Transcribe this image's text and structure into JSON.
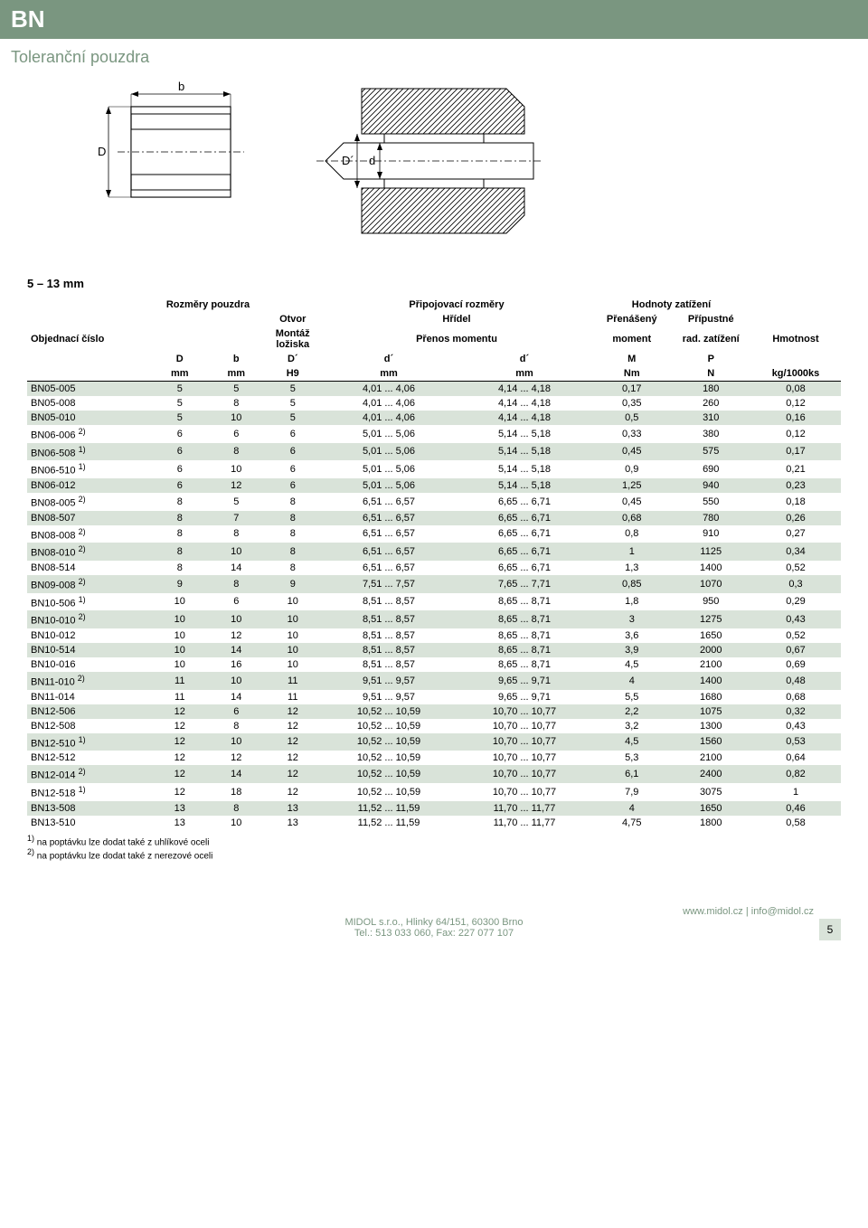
{
  "header": {
    "code": "BN",
    "subtitle": "Toleranční pouzdra"
  },
  "diagram": {
    "labels": {
      "D": "D",
      "Dp": "D´",
      "d": "d",
      "b": "b"
    }
  },
  "size_range": "5 – 13 mm",
  "table": {
    "headers": {
      "dims": "Rozměry pouzdra",
      "otvor": "Otvor",
      "conn": "Připojovací rozměry",
      "hridel": "Hřídel",
      "load": "Hodnoty zatížení",
      "order": "Objednací číslo",
      "montaz": "Montáž ložiska",
      "prenos": "Přenos momentu",
      "prenas": "Přenášený",
      "moment": "moment",
      "prip": "Přípustné",
      "rad": "rad. zatížení",
      "hm": "Hmotnost",
      "D": "D",
      "b": "b",
      "Dp": "D´",
      "dp": "d´",
      "dpp": "d´",
      "M": "M",
      "P": "P",
      "mm": "mm",
      "H9": "H9",
      "Nm": "Nm",
      "N": "N",
      "kg": "kg/1000ks"
    },
    "rows": [
      {
        "code": "BN05-005",
        "sup": "",
        "D": "5",
        "b": "5",
        "Dp": "5",
        "dr": "4,01 ... 4,06",
        "dr2": "4,14 ... 4,18",
        "M": "0,17",
        "P": "180",
        "W": "0,08"
      },
      {
        "code": "BN05-008",
        "sup": "",
        "D": "5",
        "b": "8",
        "Dp": "5",
        "dr": "4,01 ... 4,06",
        "dr2": "4,14 ... 4,18",
        "M": "0,35",
        "P": "260",
        "W": "0,12"
      },
      {
        "code": "BN05-010",
        "sup": "",
        "D": "5",
        "b": "10",
        "Dp": "5",
        "dr": "4,01 ... 4,06",
        "dr2": "4,14 ... 4,18",
        "M": "0,5",
        "P": "310",
        "W": "0,16"
      },
      {
        "code": "BN06-006",
        "sup": "2)",
        "D": "6",
        "b": "6",
        "Dp": "6",
        "dr": "5,01 ... 5,06",
        "dr2": "5,14 ... 5,18",
        "M": "0,33",
        "P": "380",
        "W": "0,12"
      },
      {
        "code": "BN06-508",
        "sup": "1)",
        "D": "6",
        "b": "8",
        "Dp": "6",
        "dr": "5,01 ... 5,06",
        "dr2": "5,14 ... 5,18",
        "M": "0,45",
        "P": "575",
        "W": "0,17"
      },
      {
        "code": "BN06-510",
        "sup": "1)",
        "D": "6",
        "b": "10",
        "Dp": "6",
        "dr": "5,01 ... 5,06",
        "dr2": "5,14 ... 5,18",
        "M": "0,9",
        "P": "690",
        "W": "0,21"
      },
      {
        "code": "BN06-012",
        "sup": "",
        "D": "6",
        "b": "12",
        "Dp": "6",
        "dr": "5,01 ... 5,06",
        "dr2": "5,14 ... 5,18",
        "M": "1,25",
        "P": "940",
        "W": "0,23"
      },
      {
        "code": "BN08-005",
        "sup": "2)",
        "D": "8",
        "b": "5",
        "Dp": "8",
        "dr": "6,51 ... 6,57",
        "dr2": "6,65 ... 6,71",
        "M": "0,45",
        "P": "550",
        "W": "0,18"
      },
      {
        "code": "BN08-507",
        "sup": "",
        "D": "8",
        "b": "7",
        "Dp": "8",
        "dr": "6,51 ... 6,57",
        "dr2": "6,65 ... 6,71",
        "M": "0,68",
        "P": "780",
        "W": "0,26"
      },
      {
        "code": "BN08-008",
        "sup": "2)",
        "D": "8",
        "b": "8",
        "Dp": "8",
        "dr": "6,51 ... 6,57",
        "dr2": "6,65 ... 6,71",
        "M": "0,8",
        "P": "910",
        "W": "0,27"
      },
      {
        "code": "BN08-010",
        "sup": "2)",
        "D": "8",
        "b": "10",
        "Dp": "8",
        "dr": "6,51 ... 6,57",
        "dr2": "6,65 ... 6,71",
        "M": "1",
        "P": "1125",
        "W": "0,34"
      },
      {
        "code": "BN08-514",
        "sup": "",
        "D": "8",
        "b": "14",
        "Dp": "8",
        "dr": "6,51 ... 6,57",
        "dr2": "6,65 ... 6,71",
        "M": "1,3",
        "P": "1400",
        "W": "0,52"
      },
      {
        "code": "BN09-008",
        "sup": "2)",
        "D": "9",
        "b": "8",
        "Dp": "9",
        "dr": "7,51 ... 7,57",
        "dr2": "7,65 ... 7,71",
        "M": "0,85",
        "P": "1070",
        "W": "0,3"
      },
      {
        "code": "BN10-506",
        "sup": "1)",
        "D": "10",
        "b": "6",
        "Dp": "10",
        "dr": "8,51 ... 8,57",
        "dr2": "8,65 ... 8,71",
        "M": "1,8",
        "P": "950",
        "W": "0,29"
      },
      {
        "code": "BN10-010",
        "sup": "2)",
        "D": "10",
        "b": "10",
        "Dp": "10",
        "dr": "8,51 ... 8,57",
        "dr2": "8,65 ... 8,71",
        "M": "3",
        "P": "1275",
        "W": "0,43"
      },
      {
        "code": "BN10-012",
        "sup": "",
        "D": "10",
        "b": "12",
        "Dp": "10",
        "dr": "8,51 ... 8,57",
        "dr2": "8,65 ... 8,71",
        "M": "3,6",
        "P": "1650",
        "W": "0,52"
      },
      {
        "code": "BN10-514",
        "sup": "",
        "D": "10",
        "b": "14",
        "Dp": "10",
        "dr": "8,51 ... 8,57",
        "dr2": "8,65 ... 8,71",
        "M": "3,9",
        "P": "2000",
        "W": "0,67"
      },
      {
        "code": "BN10-016",
        "sup": "",
        "D": "10",
        "b": "16",
        "Dp": "10",
        "dr": "8,51 ... 8,57",
        "dr2": "8,65 ... 8,71",
        "M": "4,5",
        "P": "2100",
        "W": "0,69"
      },
      {
        "code": "BN11-010",
        "sup": "2)",
        "D": "11",
        "b": "10",
        "Dp": "11",
        "dr": "9,51 ... 9,57",
        "dr2": "9,65 ... 9,71",
        "M": "4",
        "P": "1400",
        "W": "0,48"
      },
      {
        "code": "BN11-014",
        "sup": "",
        "D": "11",
        "b": "14",
        "Dp": "11",
        "dr": "9,51 ... 9,57",
        "dr2": "9,65 ... 9,71",
        "M": "5,5",
        "P": "1680",
        "W": "0,68"
      },
      {
        "code": "BN12-506",
        "sup": "",
        "D": "12",
        "b": "6",
        "Dp": "12",
        "dr": "10,52 ... 10,59",
        "dr2": "10,70 ... 10,77",
        "M": "2,2",
        "P": "1075",
        "W": "0,32"
      },
      {
        "code": "BN12-508",
        "sup": "",
        "D": "12",
        "b": "8",
        "Dp": "12",
        "dr": "10,52 ... 10,59",
        "dr2": "10,70 ... 10,77",
        "M": "3,2",
        "P": "1300",
        "W": "0,43"
      },
      {
        "code": "BN12-510",
        "sup": "1)",
        "D": "12",
        "b": "10",
        "Dp": "12",
        "dr": "10,52 ... 10,59",
        "dr2": "10,70 ... 10,77",
        "M": "4,5",
        "P": "1560",
        "W": "0,53"
      },
      {
        "code": "BN12-512",
        "sup": "",
        "D": "12",
        "b": "12",
        "Dp": "12",
        "dr": "10,52 ... 10,59",
        "dr2": "10,70 ... 10,77",
        "M": "5,3",
        "P": "2100",
        "W": "0,64"
      },
      {
        "code": "BN12-014",
        "sup": "2)",
        "D": "12",
        "b": "14",
        "Dp": "12",
        "dr": "10,52 ... 10,59",
        "dr2": "10,70 ... 10,77",
        "M": "6,1",
        "P": "2400",
        "W": "0,82"
      },
      {
        "code": "BN12-518",
        "sup": "1)",
        "D": "12",
        "b": "18",
        "Dp": "12",
        "dr": "10,52 ... 10,59",
        "dr2": "10,70 ... 10,77",
        "M": "7,9",
        "P": "3075",
        "W": "1"
      },
      {
        "code": "BN13-508",
        "sup": "",
        "D": "13",
        "b": "8",
        "Dp": "13",
        "dr": "11,52 ... 11,59",
        "dr2": "11,70 ... 11,77",
        "M": "4",
        "P": "1650",
        "W": "0,46"
      },
      {
        "code": "BN13-510",
        "sup": "",
        "D": "13",
        "b": "10",
        "Dp": "13",
        "dr": "11,52 ... 11,59",
        "dr2": "11,70 ... 11,77",
        "M": "4,75",
        "P": "1800",
        "W": "0,58"
      }
    ]
  },
  "footnotes": {
    "n1": "na poptávku lze dodat také z uhlíkové oceli",
    "n2": "na poptávku lze dodat také z nerezové oceli",
    "s1": "1)",
    "s2": "2)"
  },
  "footer": {
    "site": "www.midol.cz",
    "sep": " | ",
    "email": "info@midol.cz",
    "company": "MIDOL s.r.o., Hlinky 64/151, 60300 Brno",
    "tel": "Tel.: 513 033 060, Fax: 227 077 107",
    "page": "5"
  }
}
